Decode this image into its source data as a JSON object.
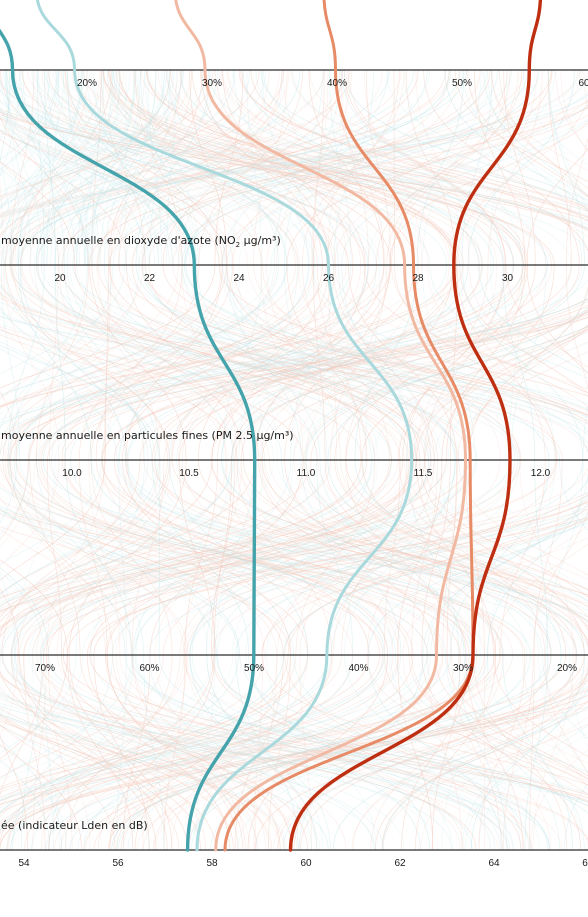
{
  "chart_data": {
    "type": "line",
    "subtype": "parallel-coordinates",
    "colors": {
      "teal_dark": "#45a3ab",
      "teal_light": "#a9d9dc",
      "orange_light": "#f2b9a2",
      "orange_mid": "#e78a66",
      "red_dark": "#bd2f10",
      "bg_teal": "#c7e7ea",
      "bg_orange": "#f4cbbd",
      "axis": "#2b2b2b"
    },
    "axes": [
      {
        "id": "axis-0",
        "title": "",
        "tick_labels": [
          "20%",
          "30%",
          "40%",
          "50%",
          "60"
        ],
        "range": [
          15,
          60
        ]
      },
      {
        "id": "axis-1",
        "title": "moyenne annuelle en dioxyde d'azote (NO",
        "title_sub": "2",
        "title_end": " µg/m³)",
        "tick_labels": [
          "20",
          "22",
          "24",
          "26",
          "28",
          "30"
        ],
        "range": [
          18.7,
          31.8
        ]
      },
      {
        "id": "axis-2",
        "title": "moyenne annuelle en particules fines (PM 2.5 µg/m³)",
        "tick_labels": [
          "10.0",
          "10.5",
          "11.0",
          "11.5",
          "12.0"
        ],
        "range": [
          9.7,
          12.2
        ]
      },
      {
        "id": "axis-3",
        "title": "",
        "tick_labels": [
          "70%",
          "60%",
          "50%",
          "40%",
          "30%",
          "20%"
        ],
        "range": [
          74,
          17.5
        ]
      },
      {
        "id": "axis-4",
        "title": "ée (indicateur Lden en dB)",
        "tick_labels": [
          "54",
          "56",
          "58",
          "60",
          "62",
          "64",
          "6"
        ],
        "range": [
          53.5,
          66.0
        ]
      }
    ],
    "series": [
      {
        "values": [
          14.0,
          23.0,
          10.78,
          50.0,
          57.5
        ],
        "color": "teal_dark",
        "width": 3.4
      },
      {
        "values": [
          19.0,
          26.0,
          11.45,
          43.0,
          57.7
        ],
        "color": "teal_light",
        "width": 3.0
      },
      {
        "values": [
          29.5,
          27.7,
          11.68,
          32.5,
          58.1
        ],
        "color": "orange_light",
        "width": 3.0
      },
      {
        "values": [
          40.0,
          27.9,
          11.7,
          29.0,
          58.3
        ],
        "color": "orange_mid",
        "width": 3.0
      },
      {
        "values": [
          55.6,
          28.8,
          11.87,
          29.0,
          59.7
        ],
        "color": "red_dark",
        "width": 3.4
      }
    ]
  }
}
